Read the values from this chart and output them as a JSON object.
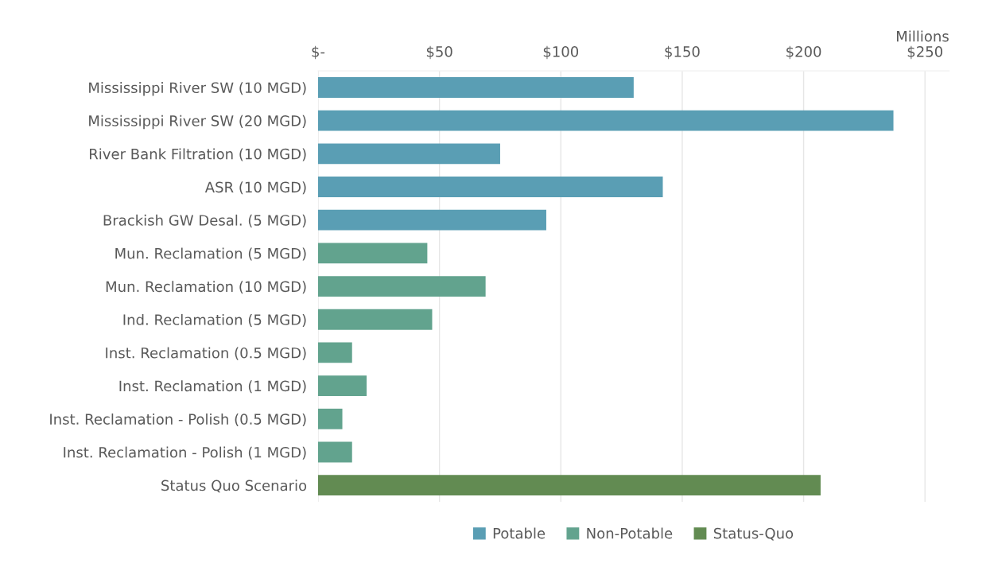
{
  "chart_data": {
    "type": "bar",
    "orientation": "horizontal",
    "xlabel": "Millions",
    "categories": [
      "Mississippi River SW (10 MGD)",
      "Mississippi River SW (20 MGD)",
      "River Bank Filtration (10 MGD)",
      "ASR (10 MGD)",
      "Brackish GW Desal. (5 MGD)",
      "Mun. Reclamation (5 MGD)",
      "Mun. Reclamation (10 MGD)",
      "Ind. Reclamation (5 MGD)",
      "Inst. Reclamation (0.5 MGD)",
      "Inst. Reclamation (1 MGD)",
      "Inst. Reclamation - Polish (0.5 MGD)",
      "Inst. Reclamation - Polish (1 MGD)",
      "Status Quo Scenario"
    ],
    "series": [
      {
        "name": "Potable",
        "color": "#5a9eb4",
        "values": [
          130,
          237,
          75,
          142,
          94,
          null,
          null,
          null,
          null,
          null,
          null,
          null,
          null
        ]
      },
      {
        "name": "Non-Potable",
        "color": "#62a38e",
        "values": [
          null,
          null,
          null,
          null,
          null,
          45,
          69,
          47,
          14,
          20,
          10,
          14,
          null
        ]
      },
      {
        "name": "Status-Quo",
        "color": "#628b52",
        "values": [
          null,
          null,
          null,
          null,
          null,
          null,
          null,
          null,
          null,
          null,
          null,
          null,
          207
        ]
      }
    ],
    "xlim": [
      0,
      260
    ],
    "xticks": [
      {
        "value": 0,
        "label": "$-"
      },
      {
        "value": 50,
        "label": "$50"
      },
      {
        "value": 100,
        "label": "$100"
      },
      {
        "value": 150,
        "label": "$150"
      },
      {
        "value": 200,
        "label": "$200"
      },
      {
        "value": 250,
        "label": "$250"
      }
    ],
    "grid": "x",
    "legend": "bottom"
  }
}
